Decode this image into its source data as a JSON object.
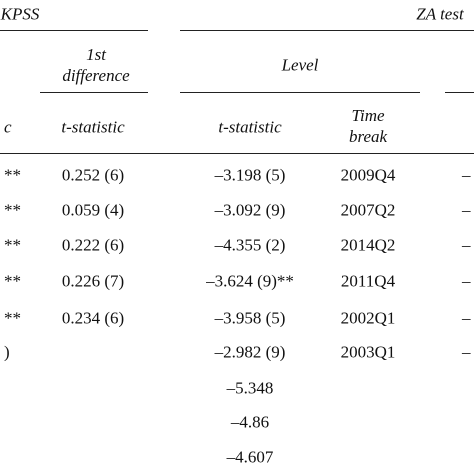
{
  "header": {
    "group_left": "KPSS",
    "group_right": "ZA test",
    "sub_difference": "1st difference",
    "sub_level": "Level",
    "col_left_partial": "c",
    "col_diff": "t-statistic",
    "col_level": "t-statistic",
    "col_break": "Time break"
  },
  "table": {
    "rows": [
      [
        "**",
        "0.252 (6)",
        "–3.198 (5)",
        "2009Q4",
        "–"
      ],
      [
        "**",
        "0.059 (4)",
        "–3.092 (9)",
        "2007Q2",
        "–"
      ],
      [
        "**",
        "0.222 (6)",
        "–4.355 (2)",
        "2014Q2",
        "–"
      ],
      [
        "**",
        "0.226 (7)",
        "–3.624 (9)**",
        "2011Q4",
        "–"
      ],
      [
        "**",
        "0.234 (6)",
        "–3.958 (5)",
        "2002Q1",
        "–"
      ],
      [
        ")",
        null,
        "–2.982 (9)",
        "2003Q1",
        "–"
      ],
      [
        null,
        null,
        "–5.348",
        null,
        null
      ],
      [
        null,
        null,
        "–4.86",
        null,
        null
      ],
      [
        null,
        null,
        "–4.607",
        null,
        null
      ]
    ]
  }
}
